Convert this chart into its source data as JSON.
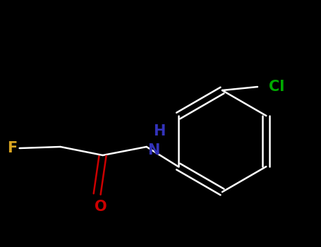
{
  "background_color": "#000000",
  "bond_color": "#ffffff",
  "atom_colors": {
    "F": "#DAA520",
    "O": "#cc0000",
    "N": "#3333bb",
    "Cl": "#00aa00",
    "C": "#ffffff"
  },
  "bond_width": 1.8,
  "font_size": 15,
  "fig_width": 4.55,
  "fig_height": 3.5,
  "dpi": 100
}
